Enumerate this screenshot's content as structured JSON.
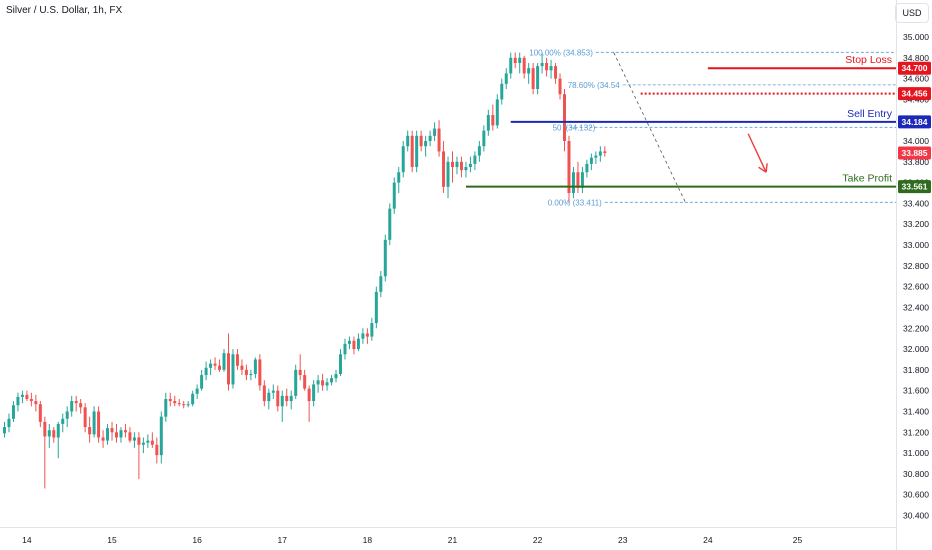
{
  "header": {
    "title": "Silver / U.S. Dollar, 1h, FX",
    "currency": "USD"
  },
  "colors": {
    "up": "#26a69a",
    "down": "#ef5350",
    "stop_loss": "#e6141e",
    "sell_entry": "#1c29b8",
    "take_profit": "#2e6b1c",
    "fib": "#5b9bd5",
    "arrow": "#ef3b3b",
    "current_price": "#f23645"
  },
  "chart_data": {
    "type": "candlestick",
    "ylim": [
      30.4,
      35.0
    ],
    "y_ticks": [
      "35.000",
      "34.800",
      "34.600",
      "34.400",
      "34.200",
      "34.000",
      "33.800",
      "33.600",
      "33.400",
      "33.200",
      "33.000",
      "32.800",
      "32.600",
      "32.400",
      "32.200",
      "32.000",
      "31.800",
      "31.600",
      "31.400",
      "31.200",
      "31.000",
      "30.800",
      "30.600",
      "30.400"
    ],
    "x_ticks": [
      "14",
      "15",
      "16",
      "17",
      "18",
      "21",
      "22",
      "23",
      "24",
      "25"
    ],
    "x_tick_idx": [
      5,
      24,
      43,
      62,
      81,
      100,
      119,
      138,
      157,
      177
    ],
    "last_idx": 163,
    "fibonacci": [
      {
        "label": "100.00% (34.853)",
        "value": 34.853,
        "x_start": 132
      },
      {
        "label": "78.60% (34.54",
        "value": 34.54,
        "x_start": 138
      },
      {
        "label": "50",
        "label2": "(34.132)",
        "value": 34.132,
        "x_start": 125
      },
      {
        "label": "0.00% (33.411)",
        "value": 33.411,
        "x_start": 134
      }
    ],
    "fib_trend": {
      "from": {
        "idx": 136,
        "value": 34.85
      },
      "to": {
        "idx": 152,
        "value": 33.41
      }
    },
    "levels": [
      {
        "name": "Stop Loss",
        "value": 34.7,
        "tag": "34.700",
        "style": "solid",
        "from_idx": 157
      },
      {
        "name": "",
        "value": 34.456,
        "tag": "34.456",
        "style": "dotted",
        "from_idx": 142
      },
      {
        "name": "Sell Entry",
        "value": 34.184,
        "tag": "34.184",
        "style": "solid",
        "from_idx": 113
      },
      {
        "name": "Take Profit",
        "value": 33.561,
        "tag": "33.561",
        "style": "solid",
        "from_idx": 103
      }
    ],
    "current_price": {
      "tag": "33.885",
      "value": 33.885
    },
    "arrow": {
      "from": {
        "idx": 166,
        "value": 34.07
      },
      "to": {
        "idx": 170,
        "value": 33.7
      }
    },
    "candles": [
      [
        31.19,
        31.3,
        31.15,
        31.25
      ],
      [
        31.25,
        31.38,
        31.2,
        31.33
      ],
      [
        31.33,
        31.5,
        31.3,
        31.46
      ],
      [
        31.46,
        31.58,
        31.4,
        31.54
      ],
      [
        31.54,
        31.6,
        31.48,
        31.56
      ],
      [
        31.56,
        31.6,
        31.5,
        31.52
      ],
      [
        31.52,
        31.58,
        31.45,
        31.5
      ],
      [
        31.5,
        31.56,
        31.4,
        31.47
      ],
      [
        31.47,
        31.5,
        31.25,
        31.3
      ],
      [
        31.3,
        31.35,
        30.66,
        31.16
      ],
      [
        31.16,
        31.28,
        31.05,
        31.22
      ],
      [
        31.22,
        31.25,
        31.1,
        31.15
      ],
      [
        31.15,
        31.3,
        30.95,
        31.28
      ],
      [
        31.28,
        31.38,
        31.2,
        31.33
      ],
      [
        31.33,
        31.45,
        31.25,
        31.4
      ],
      [
        31.4,
        31.55,
        31.35,
        31.5
      ],
      [
        31.5,
        31.55,
        31.4,
        31.48
      ],
      [
        31.48,
        31.52,
        31.38,
        31.44
      ],
      [
        31.44,
        31.48,
        31.2,
        31.25
      ],
      [
        31.25,
        31.35,
        31.1,
        31.18
      ],
      [
        31.18,
        31.45,
        31.15,
        31.4
      ],
      [
        31.4,
        31.45,
        31.1,
        31.15
      ],
      [
        31.15,
        31.22,
        31.05,
        31.12
      ],
      [
        31.12,
        31.28,
        31.08,
        31.24
      ],
      [
        31.24,
        31.3,
        31.12,
        31.2
      ],
      [
        31.2,
        31.28,
        31.1,
        31.15
      ],
      [
        31.15,
        31.25,
        31.1,
        31.22
      ],
      [
        31.22,
        31.28,
        31.15,
        31.2
      ],
      [
        31.2,
        31.25,
        31.1,
        31.12
      ],
      [
        31.12,
        31.2,
        31.05,
        31.15
      ],
      [
        31.15,
        31.2,
        30.75,
        31.08
      ],
      [
        31.08,
        31.15,
        31.0,
        31.1
      ],
      [
        31.1,
        31.18,
        31.05,
        31.12
      ],
      [
        31.12,
        31.2,
        31.05,
        31.08
      ],
      [
        31.08,
        31.15,
        30.9,
        30.98
      ],
      [
        30.98,
        31.4,
        30.9,
        31.35
      ],
      [
        31.35,
        31.58,
        31.3,
        31.52
      ],
      [
        31.52,
        31.58,
        31.45,
        31.5
      ],
      [
        31.5,
        31.55,
        31.45,
        31.48
      ],
      [
        31.48,
        31.52,
        31.45,
        31.47
      ],
      [
        31.47,
        31.5,
        31.43,
        31.46
      ],
      [
        31.46,
        31.5,
        31.44,
        31.47
      ],
      [
        31.47,
        31.6,
        31.45,
        31.57
      ],
      [
        31.57,
        31.66,
        31.52,
        31.62
      ],
      [
        31.62,
        31.8,
        31.6,
        31.75
      ],
      [
        31.75,
        31.88,
        31.7,
        31.82
      ],
      [
        31.82,
        31.9,
        31.75,
        31.86
      ],
      [
        31.86,
        31.92,
        31.8,
        31.84
      ],
      [
        31.84,
        31.9,
        31.78,
        31.8
      ],
      [
        31.8,
        32.0,
        31.78,
        31.96
      ],
      [
        31.96,
        32.15,
        31.6,
        31.66
      ],
      [
        31.66,
        32.0,
        31.62,
        31.95
      ],
      [
        31.95,
        32.0,
        31.8,
        31.84
      ],
      [
        31.84,
        31.9,
        31.75,
        31.8
      ],
      [
        31.8,
        31.85,
        31.7,
        31.75
      ],
      [
        31.75,
        31.8,
        31.7,
        31.76
      ],
      [
        31.76,
        31.92,
        31.72,
        31.9
      ],
      [
        31.9,
        31.95,
        31.6,
        31.65
      ],
      [
        31.65,
        31.7,
        31.45,
        31.5
      ],
      [
        31.5,
        31.62,
        31.42,
        31.58
      ],
      [
        31.58,
        31.66,
        31.52,
        31.6
      ],
      [
        31.6,
        31.65,
        31.4,
        31.45
      ],
      [
        31.45,
        31.6,
        31.3,
        31.55
      ],
      [
        31.55,
        31.62,
        31.45,
        31.5
      ],
      [
        31.5,
        31.6,
        31.42,
        31.55
      ],
      [
        31.55,
        31.85,
        31.52,
        31.8
      ],
      [
        31.8,
        31.95,
        31.7,
        31.75
      ],
      [
        31.75,
        31.8,
        31.6,
        31.62
      ],
      [
        31.62,
        31.65,
        31.3,
        31.5
      ],
      [
        31.5,
        31.7,
        31.45,
        31.66
      ],
      [
        31.66,
        31.75,
        31.58,
        31.7
      ],
      [
        31.7,
        31.76,
        31.6,
        31.65
      ],
      [
        31.65,
        31.72,
        31.6,
        31.68
      ],
      [
        31.68,
        31.75,
        31.65,
        31.72
      ],
      [
        31.72,
        31.8,
        31.68,
        31.76
      ],
      [
        31.76,
        32.0,
        31.74,
        31.95
      ],
      [
        31.95,
        32.1,
        31.9,
        32.05
      ],
      [
        32.05,
        32.12,
        32.0,
        32.08
      ],
      [
        32.08,
        32.12,
        31.95,
        32.0
      ],
      [
        32.0,
        32.15,
        31.98,
        32.1
      ],
      [
        32.1,
        32.2,
        32.05,
        32.15
      ],
      [
        32.15,
        32.2,
        32.05,
        32.12
      ],
      [
        32.12,
        32.3,
        32.08,
        32.25
      ],
      [
        32.25,
        32.6,
        32.2,
        32.55
      ],
      [
        32.55,
        32.75,
        32.5,
        32.7
      ],
      [
        32.7,
        33.1,
        32.65,
        33.05
      ],
      [
        33.05,
        33.4,
        33.0,
        33.35
      ],
      [
        33.35,
        33.65,
        33.3,
        33.6
      ],
      [
        33.6,
        33.75,
        33.5,
        33.7
      ],
      [
        33.7,
        34.0,
        33.65,
        33.95
      ],
      [
        33.95,
        34.1,
        33.9,
        34.05
      ],
      [
        34.05,
        34.1,
        33.7,
        33.75
      ],
      [
        33.75,
        34.1,
        33.7,
        34.05
      ],
      [
        34.05,
        34.1,
        33.9,
        33.95
      ],
      [
        33.95,
        34.05,
        33.85,
        34.0
      ],
      [
        34.0,
        34.1,
        33.95,
        34.05
      ],
      [
        34.05,
        34.18,
        34.0,
        34.12
      ],
      [
        34.12,
        34.2,
        33.85,
        33.9
      ],
      [
        33.9,
        34.0,
        33.5,
        33.56
      ],
      [
        33.56,
        33.85,
        33.45,
        33.8
      ],
      [
        33.8,
        33.9,
        33.6,
        33.75
      ],
      [
        33.75,
        33.85,
        33.68,
        33.8
      ],
      [
        33.8,
        33.85,
        33.65,
        33.72
      ],
      [
        33.72,
        33.8,
        33.65,
        33.75
      ],
      [
        33.75,
        33.85,
        33.7,
        33.78
      ],
      [
        33.78,
        33.9,
        33.72,
        33.86
      ],
      [
        33.86,
        34.0,
        33.8,
        33.95
      ],
      [
        33.95,
        34.15,
        33.9,
        34.1
      ],
      [
        34.1,
        34.3,
        34.05,
        34.25
      ],
      [
        34.25,
        34.35,
        34.1,
        34.15
      ],
      [
        34.15,
        34.45,
        34.12,
        34.4
      ],
      [
        34.4,
        34.6,
        34.35,
        34.55
      ],
      [
        34.55,
        34.7,
        34.5,
        34.65
      ],
      [
        34.65,
        34.85,
        34.6,
        34.8
      ],
      [
        34.8,
        34.853,
        34.7,
        34.75
      ],
      [
        34.75,
        34.85,
        34.65,
        34.8
      ],
      [
        34.8,
        34.82,
        34.6,
        34.65
      ],
      [
        34.65,
        34.75,
        34.55,
        34.7
      ],
      [
        34.7,
        34.75,
        34.45,
        34.5
      ],
      [
        34.5,
        34.75,
        34.45,
        34.72
      ],
      [
        34.72,
        34.85,
        34.65,
        34.75
      ],
      [
        34.75,
        34.8,
        34.62,
        34.68
      ],
      [
        34.68,
        34.78,
        34.6,
        34.72
      ],
      [
        34.72,
        34.75,
        34.55,
        34.6
      ],
      [
        34.6,
        34.65,
        34.4,
        34.45
      ],
      [
        34.45,
        34.5,
        33.9,
        34.0
      ],
      [
        34.0,
        34.05,
        33.411,
        33.5
      ],
      [
        33.5,
        33.75,
        33.45,
        33.7
      ],
      [
        33.7,
        33.8,
        33.5,
        33.55
      ],
      [
        33.55,
        33.75,
        33.5,
        33.7
      ],
      [
        33.7,
        33.82,
        33.65,
        33.78
      ],
      [
        33.78,
        33.88,
        33.72,
        33.84
      ],
      [
        33.84,
        33.9,
        33.78,
        33.86
      ],
      [
        33.86,
        33.95,
        33.8,
        33.9
      ],
      [
        33.9,
        33.95,
        33.85,
        33.885
      ]
    ]
  }
}
